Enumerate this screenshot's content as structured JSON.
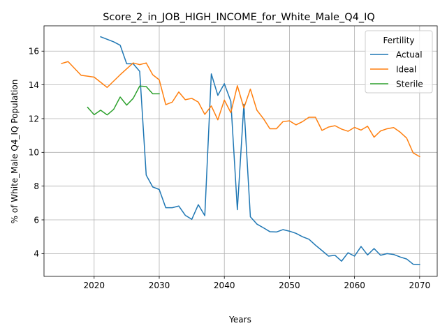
{
  "chart_data": {
    "type": "line",
    "title": "Score_2_in_JOB_HIGH_INCOME_for_White_Male_Q4_IQ",
    "xlabel": "Years",
    "ylabel": "% of White_Male Q4_IQ Population",
    "xlim": [
      2012.3,
      2072.7
    ],
    "ylim": [
      2.65,
      17.5
    ],
    "xticks": [
      2020,
      2030,
      2040,
      2050,
      2060,
      2070
    ],
    "yticks": [
      4,
      6,
      8,
      10,
      12,
      14,
      16
    ],
    "grid": true,
    "legend": {
      "title": "Fertility",
      "position": "top-right"
    },
    "series": [
      {
        "name": "Actual",
        "color": "#1f77b4",
        "x": [
          2021,
          2022,
          2023,
          2024,
          2025,
          2026,
          2027,
          2028,
          2029,
          2030,
          2031,
          2032,
          2033,
          2034,
          2035,
          2036,
          2037,
          2038,
          2039,
          2040,
          2041,
          2042,
          2043,
          2044,
          2045,
          2046,
          2047,
          2048,
          2049,
          2050,
          2051,
          2052,
          2053,
          2054,
          2055,
          2056,
          2057,
          2058,
          2059,
          2060,
          2061,
          2062,
          2063,
          2064,
          2065,
          2066,
          2067,
          2068,
          2069,
          2070
        ],
        "y": [
          16.85,
          16.7,
          16.55,
          16.35,
          15.25,
          15.25,
          14.8,
          8.65,
          7.95,
          7.8,
          6.72,
          6.72,
          6.82,
          6.27,
          6.03,
          6.9,
          6.25,
          14.65,
          13.38,
          14.07,
          13.02,
          6.6,
          12.85,
          6.18,
          5.75,
          5.53,
          5.3,
          5.28,
          5.42,
          5.33,
          5.2,
          5.0,
          4.85,
          4.5,
          4.18,
          3.85,
          3.9,
          3.55,
          4.05,
          3.85,
          4.42,
          3.92,
          4.3,
          3.9,
          4.0,
          3.95,
          3.8,
          3.68,
          3.37,
          3.35
        ]
      },
      {
        "name": "Ideal",
        "color": "#ff7f0e",
        "x": [
          2015,
          2016,
          2018,
          2020,
          2022,
          2024,
          2026,
          2027,
          2028,
          2029,
          2030,
          2031,
          2032,
          2033,
          2034,
          2035,
          2036,
          2037,
          2038,
          2039,
          2040,
          2041,
          2042,
          2043,
          2044,
          2045,
          2046,
          2047,
          2048,
          2049,
          2050,
          2051,
          2052,
          2053,
          2054,
          2055,
          2056,
          2057,
          2058,
          2059,
          2060,
          2061,
          2062,
          2063,
          2064,
          2065,
          2066,
          2067,
          2068,
          2069,
          2070
        ],
        "y": [
          15.27,
          15.38,
          14.57,
          14.46,
          13.85,
          14.6,
          15.3,
          15.2,
          15.3,
          14.6,
          14.3,
          12.83,
          12.98,
          13.58,
          13.12,
          13.2,
          12.98,
          12.25,
          12.75,
          11.93,
          13.1,
          12.35,
          13.95,
          12.63,
          13.75,
          12.5,
          12.0,
          11.4,
          11.4,
          11.82,
          11.87,
          11.63,
          11.82,
          12.08,
          12.08,
          11.3,
          11.5,
          11.58,
          11.38,
          11.25,
          11.48,
          11.32,
          11.55,
          10.9,
          11.27,
          11.4,
          11.47,
          11.2,
          10.85,
          9.97,
          9.75
        ]
      },
      {
        "name": "Sterile",
        "color": "#2ca02c",
        "x": [
          2019,
          2020,
          2021,
          2022,
          2023,
          2024,
          2025,
          2026,
          2027,
          2028,
          2029,
          2030
        ],
        "y": [
          12.67,
          12.23,
          12.5,
          12.22,
          12.55,
          13.28,
          12.8,
          13.2,
          13.93,
          13.9,
          13.47,
          13.47
        ]
      }
    ]
  }
}
